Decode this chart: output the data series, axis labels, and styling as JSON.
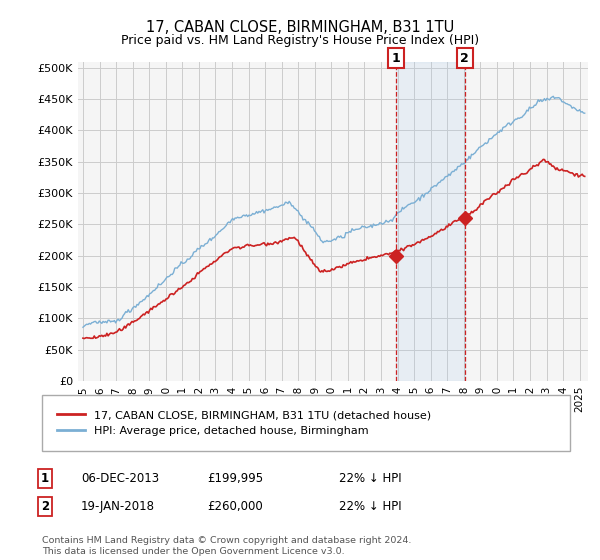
{
  "title": "17, CABAN CLOSE, BIRMINGHAM, B31 1TU",
  "subtitle": "Price paid vs. HM Land Registry's House Price Index (HPI)",
  "ylim": [
    0,
    500000
  ],
  "yticks": [
    0,
    50000,
    100000,
    150000,
    200000,
    250000,
    300000,
    350000,
    400000,
    450000,
    500000
  ],
  "xlim_start": 1994.7,
  "xlim_end": 2025.5,
  "background_color": "#ffffff",
  "plot_bg_color": "#f5f5f5",
  "grid_color": "#cccccc",
  "hpi_color": "#7bafd4",
  "price_color": "#cc2222",
  "sale1_date": 2013.92,
  "sale1_price": 199995,
  "sale2_date": 2018.05,
  "sale2_price": 260000,
  "legend_label_price": "17, CABAN CLOSE, BIRMINGHAM, B31 1TU (detached house)",
  "legend_label_hpi": "HPI: Average price, detached house, Birmingham",
  "annotation1_date": "06-DEC-2013",
  "annotation1_price": "£199,995",
  "annotation1_hpi": "22% ↓ HPI",
  "annotation2_date": "19-JAN-2018",
  "annotation2_price": "£260,000",
  "annotation2_hpi": "22% ↓ HPI",
  "footnote": "Contains HM Land Registry data © Crown copyright and database right 2024.\nThis data is licensed under the Open Government Licence v3.0."
}
